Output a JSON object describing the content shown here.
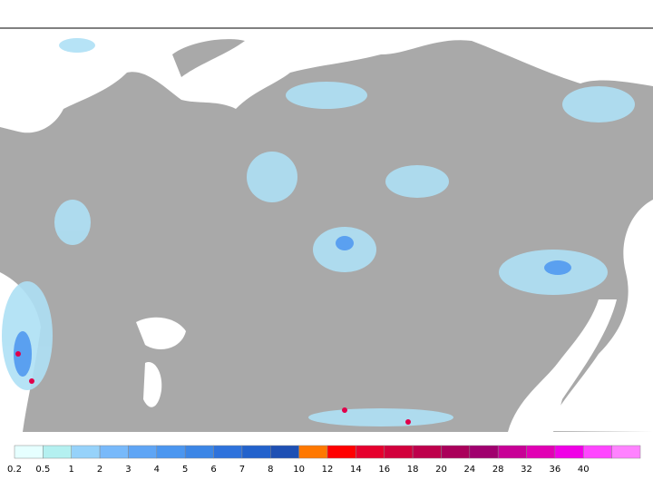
{
  "colorbar": {
    "levels": [
      0.2,
      0.5,
      1,
      2,
      3,
      4,
      5,
      6,
      7,
      8,
      10,
      12,
      14,
      16,
      18,
      20,
      24,
      28,
      32,
      36,
      40
    ],
    "colors": [
      "#e6ffff",
      "#b4f0f0",
      "#96d2fa",
      "#78b9fa",
      "#5fa5f5",
      "#4b96f0",
      "#3c86e6",
      "#2e72dc",
      "#2262cc",
      "#1e50b4",
      "#ff7800",
      "#ff0000",
      "#e6002d",
      "#d2003c",
      "#be004b",
      "#aa005a",
      "#a0006e",
      "#c80096",
      "#e100b4",
      "#f000e6",
      "#ff46ff",
      "#ff82ff"
    ]
  }
}
